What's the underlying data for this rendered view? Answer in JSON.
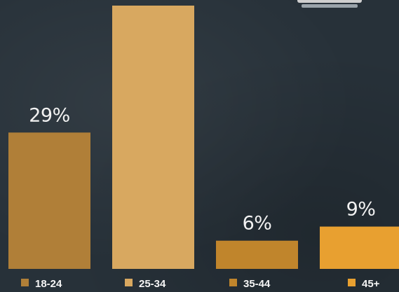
{
  "chart_data": {
    "type": "bar",
    "categories": [
      "18-24",
      "25-34",
      "35-44",
      "45+"
    ],
    "values": [
      29,
      56,
      6,
      9
    ],
    "value_labels": [
      "29%",
      "",
      "6%",
      "9%"
    ],
    "colors": [
      "#b07f38",
      "#d8a860",
      "#c0852c",
      "#e8a030"
    ],
    "title": "",
    "xlabel": "",
    "ylabel": "",
    "ylim": [
      0,
      56
    ],
    "grid": false,
    "legend": "bottom"
  },
  "theme": {
    "background": "#273139"
  },
  "decorations": {
    "icon": "badge-icon"
  }
}
